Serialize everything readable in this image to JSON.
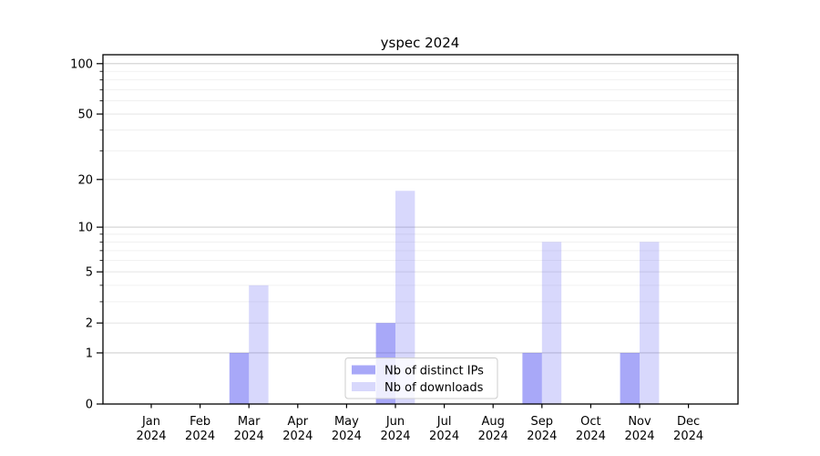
{
  "chart_data": {
    "type": "bar",
    "title": "yspec 2024",
    "categories": [
      "Jan",
      "Feb",
      "Mar",
      "Apr",
      "May",
      "Jun",
      "Jul",
      "Aug",
      "Sep",
      "Oct",
      "Nov",
      "Dec"
    ],
    "category_year": "2024",
    "series": [
      {
        "name": "Nb of distinct IPs",
        "color": "#5151F180",
        "values": [
          0,
          0,
          1,
          0,
          0,
          2,
          0,
          0,
          1,
          0,
          1,
          0
        ]
      },
      {
        "name": "Nb of downloads",
        "color": "#5151F139",
        "values": [
          0,
          0,
          4,
          0,
          0,
          17,
          0,
          0,
          8,
          0,
          8,
          0
        ]
      }
    ],
    "scale": "log1p",
    "y_ticks": [
      0,
      1,
      2,
      5,
      10,
      20,
      50,
      100
    ],
    "y_major_ticks": [
      1,
      10,
      100
    ],
    "y_minor_ticks": [
      3,
      4,
      6,
      7,
      8,
      9,
      30,
      40,
      60,
      70,
      80,
      90
    ],
    "ylim": [
      0,
      113
    ],
    "grid": true,
    "legend_position": "lower center",
    "colors": {
      "grid_major": "#c4c4c4",
      "grid_labeled_minor": "#e0e0e0",
      "grid_minor": "#eeeeee",
      "axis": "#000000",
      "legend_border": "#cccccc",
      "legend_background": "#ffffff"
    }
  }
}
